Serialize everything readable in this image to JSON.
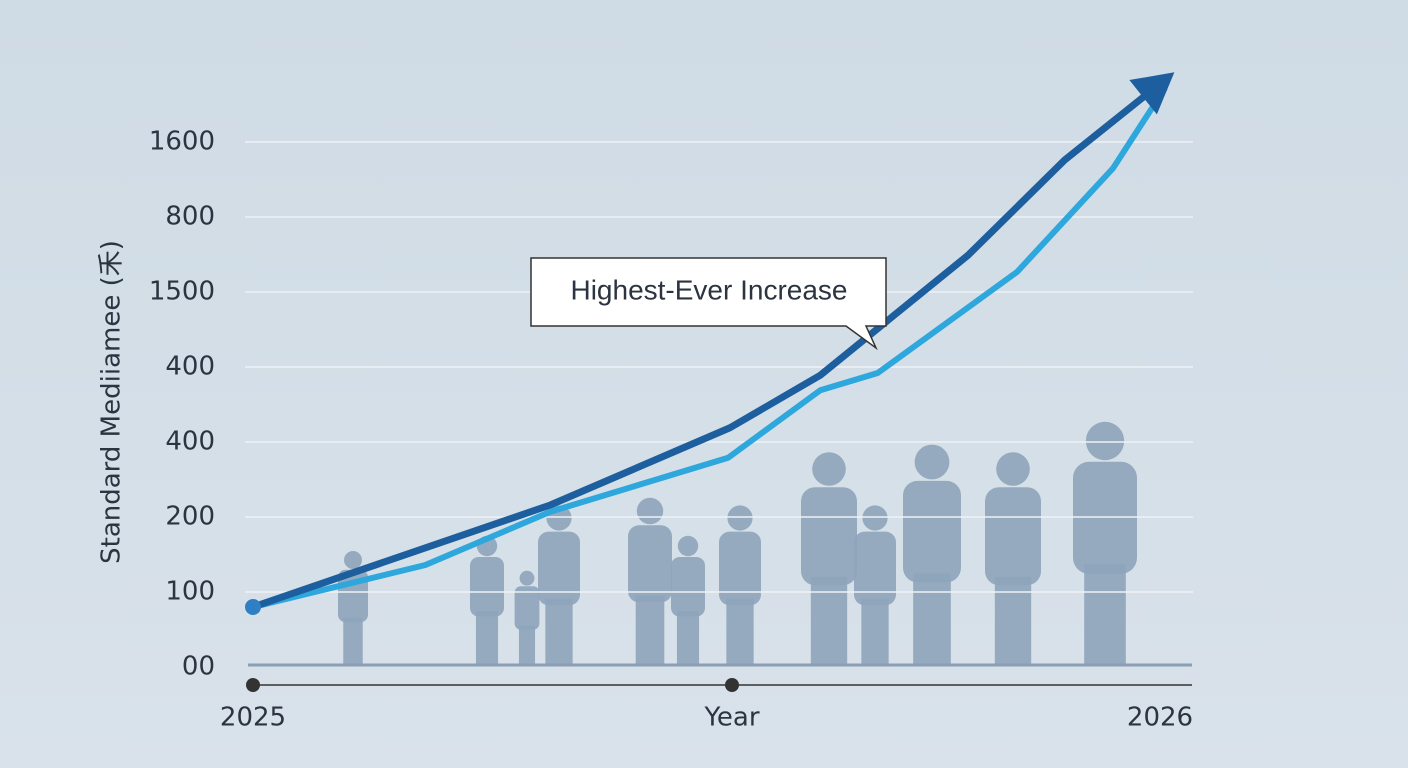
{
  "chart_data": {
    "type": "line",
    "y_label": "Standard Mediiamee (禾)",
    "x_label": "Year",
    "annotation": "Highest-Ever Increase",
    "xlim": [
      2025,
      2026
    ],
    "xticks": [
      2025,
      2026
    ],
    "ylim": [
      0,
      8
    ],
    "yticks": [
      {
        "value": 0,
        "label": "00"
      },
      {
        "value": 1,
        "label": "100"
      },
      {
        "value": 2,
        "label": "200"
      },
      {
        "value": 3,
        "label": "400"
      },
      {
        "value": 4,
        "label": "400"
      },
      {
        "value": 5,
        "label": "1500"
      },
      {
        "value": 6,
        "label": "800"
      },
      {
        "value": 7,
        "label": "1600"
      }
    ],
    "grid": true,
    "series": [
      {
        "color": "#1d5f9e",
        "x": [
          2025,
          2025.326,
          2025.523,
          2025.622,
          2025.784,
          2025.89,
          2026
        ],
        "values": [
          0.8,
          2.16,
          3.19,
          3.89,
          5.49,
          6.76,
          7.83
        ]
      },
      {
        "color": "#2ea7dd",
        "x": [
          2025,
          2025.189,
          2025.326,
          2025.521,
          2025.622,
          2025.685,
          2025.838,
          2025.943,
          2026
        ],
        "values": [
          0.8,
          1.36,
          2.07,
          2.79,
          3.69,
          3.92,
          5.27,
          6.65,
          7.72
        ]
      }
    ]
  }
}
